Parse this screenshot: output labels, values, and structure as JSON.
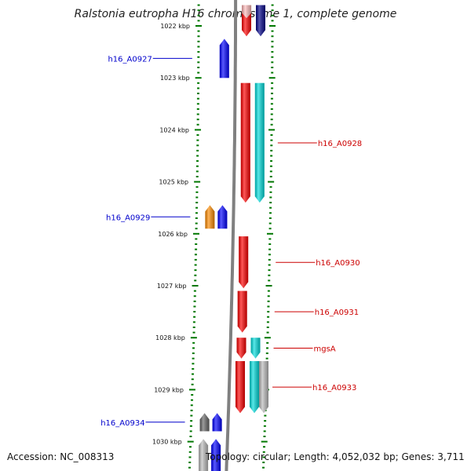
{
  "title": "Ralstonia eutropha H16 chromosome 1, complete genome",
  "footer": {
    "accession": "Accession: NC_008313",
    "stats": "Topology: circular; Length: 4,052,032 bp; Genes: 3,711"
  },
  "colors": {
    "forward_strand": "#ff0000",
    "reverse_strand": "#0000ff",
    "forward_label": "#cc0000",
    "reverse_label": "#0000cc",
    "tick": "#007700",
    "backbone": "#808080"
  },
  "scale": {
    "labels": [
      "1022 kbp",
      "1023 kbp",
      "1024 kbp",
      "1025 kbp",
      "1026 kbp",
      "1027 kbp",
      "1028 kbp",
      "1029 kbp",
      "1030 kbp"
    ]
  },
  "features": [
    {
      "name": "h16_A0927",
      "strand": "reverse",
      "color": "#0000ff",
      "track": "inner",
      "start_kbp": 1022.25,
      "end_kbp": 1023.0
    },
    {
      "name": "h16_A0928",
      "strand": "forward",
      "color": "#ff0000",
      "track": "outer1",
      "start_kbp": 1023.1,
      "end_kbp": 1025.4
    },
    {
      "name": "",
      "strand": "forward",
      "color": "#00dddd",
      "track": "outer2",
      "start_kbp": 1023.1,
      "end_kbp": 1025.4
    },
    {
      "name": "h16_A0929",
      "strand": "reverse",
      "color": "#0000ff",
      "track": "inner",
      "start_kbp": 1025.45,
      "end_kbp": 1025.9
    },
    {
      "name": "",
      "strand": "reverse",
      "color": "#ff8c00",
      "track": "inner2",
      "start_kbp": 1025.45,
      "end_kbp": 1025.9
    },
    {
      "name": "h16_A0930",
      "strand": "forward",
      "color": "#ff0000",
      "track": "outer1",
      "start_kbp": 1026.05,
      "end_kbp": 1027.05
    },
    {
      "name": "h16_A0931",
      "strand": "forward",
      "color": "#ff0000",
      "track": "outer1",
      "start_kbp": 1027.1,
      "end_kbp": 1027.9
    },
    {
      "name": "mgsA",
      "strand": "forward",
      "color": "#ff0000",
      "track": "outer1",
      "start_kbp": 1028.0,
      "end_kbp": 1028.4
    },
    {
      "name": "",
      "strand": "forward",
      "color": "#00dddd",
      "track": "outer2",
      "start_kbp": 1028.0,
      "end_kbp": 1028.4
    },
    {
      "name": "h16_A0933",
      "strand": "forward",
      "color": "#ff0000",
      "track": "outer1",
      "start_kbp": 1028.45,
      "end_kbp": 1029.45
    },
    {
      "name": "",
      "strand": "forward",
      "color": "#00dddd",
      "track": "outer2",
      "start_kbp": 1028.45,
      "end_kbp": 1029.45
    },
    {
      "name": "",
      "strand": "forward",
      "color": "#bbbbbb",
      "track": "outer3",
      "start_kbp": 1028.45,
      "end_kbp": 1029.45
    },
    {
      "name": "h16_A0934",
      "strand": "reverse",
      "color": "#0000ff",
      "track": "inner",
      "start_kbp": 1029.45,
      "end_kbp": 1029.8
    },
    {
      "name": "",
      "strand": "reverse",
      "color": "#666666",
      "track": "inner2",
      "start_kbp": 1029.45,
      "end_kbp": 1029.8
    },
    {
      "name": "",
      "strand": "reverse",
      "color": "#0000ff",
      "track": "inner",
      "start_kbp": 1029.95,
      "end_kbp": 1030.6
    },
    {
      "name": "",
      "strand": "reverse",
      "color": "#bbbbbb",
      "track": "inner2",
      "start_kbp": 1029.95,
      "end_kbp": 1030.6
    },
    {
      "name": "",
      "strand": "forward",
      "color": "#ff0000",
      "track": "outer1",
      "start_kbp": 1021.6,
      "end_kbp": 1022.2
    },
    {
      "name": "",
      "strand": "forward",
      "color": "#ffbbbb",
      "track": "outer1b",
      "start_kbp": 1021.6,
      "end_kbp": 1021.85
    },
    {
      "name": "",
      "strand": "forward",
      "color": "#000088",
      "track": "outer2",
      "start_kbp": 1021.6,
      "end_kbp": 1022.2
    }
  ]
}
